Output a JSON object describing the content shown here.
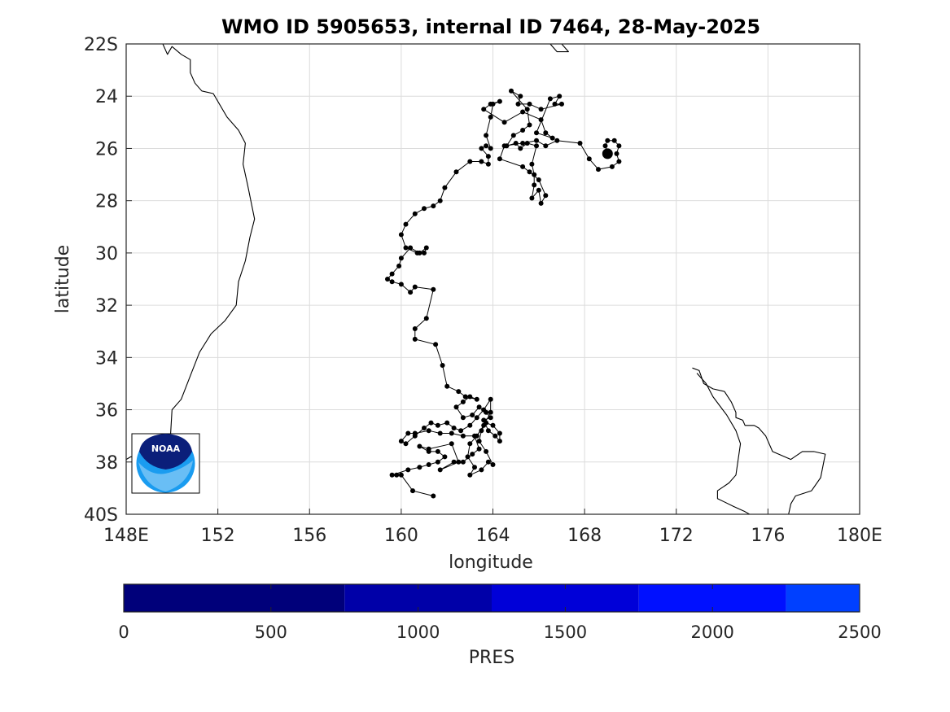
{
  "figure": {
    "title": "WMO ID 5905653, internal ID 7464, 28-May-2025",
    "logo_text": "NOAA"
  },
  "map": {
    "xlabel": "longitude",
    "ylabel": "latitude",
    "lon_range": [
      148,
      180
    ],
    "lat_range": [
      -40,
      -22
    ],
    "x_ticks": [
      148,
      152,
      156,
      160,
      164,
      168,
      172,
      176,
      180
    ],
    "x_tick_labels": [
      "148E",
      "152",
      "156",
      "160",
      "164",
      "168",
      "172",
      "176",
      "180E"
    ],
    "y_ticks": [
      -22,
      -24,
      -26,
      -28,
      -30,
      -32,
      -34,
      -36,
      -38,
      -40
    ],
    "y_tick_labels": [
      "22S",
      "24",
      "26",
      "28",
      "30",
      "32",
      "34",
      "36",
      "38",
      "40S"
    ],
    "grid": true,
    "last_position": [
      169.0,
      -26.2
    ],
    "track": [
      [
        161.4,
        -39.3
      ],
      [
        160.5,
        -39.1
      ],
      [
        160.0,
        -38.5
      ],
      [
        159.8,
        -38.5
      ],
      [
        159.6,
        -38.5
      ],
      [
        160.3,
        -38.3
      ],
      [
        160.8,
        -38.2
      ],
      [
        161.2,
        -38.1
      ],
      [
        161.6,
        -38.0
      ],
      [
        161.9,
        -37.8
      ],
      [
        161.6,
        -37.6
      ],
      [
        161.2,
        -37.6
      ],
      [
        160.8,
        -37.4
      ],
      [
        161.2,
        -37.5
      ],
      [
        162.2,
        -37.3
      ],
      [
        162.5,
        -38.0
      ],
      [
        161.7,
        -38.3
      ],
      [
        162.3,
        -38.0
      ],
      [
        162.7,
        -38.0
      ],
      [
        163.1,
        -37.7
      ],
      [
        163.4,
        -37.5
      ],
      [
        163.2,
        -37.0
      ],
      [
        162.7,
        -37.0
      ],
      [
        162.2,
        -36.9
      ],
      [
        161.7,
        -36.9
      ],
      [
        161.2,
        -36.8
      ],
      [
        160.6,
        -36.9
      ],
      [
        160.3,
        -36.9
      ],
      [
        160.0,
        -37.2
      ],
      [
        160.2,
        -37.3
      ],
      [
        160.6,
        -37.0
      ],
      [
        161.0,
        -36.7
      ],
      [
        161.3,
        -36.5
      ],
      [
        161.6,
        -36.6
      ],
      [
        162.0,
        -36.5
      ],
      [
        162.3,
        -36.7
      ],
      [
        162.6,
        -36.8
      ],
      [
        163.0,
        -36.6
      ],
      [
        163.3,
        -36.3
      ],
      [
        163.6,
        -36.0
      ],
      [
        163.9,
        -35.6
      ],
      [
        163.9,
        -36.1
      ],
      [
        163.6,
        -36.6
      ],
      [
        163.3,
        -37.0
      ],
      [
        163.0,
        -37.3
      ],
      [
        162.9,
        -37.8
      ],
      [
        163.2,
        -38.2
      ],
      [
        163.0,
        -38.5
      ],
      [
        163.5,
        -38.3
      ],
      [
        163.8,
        -38.0
      ],
      [
        164.0,
        -38.1
      ],
      [
        163.7,
        -37.6
      ],
      [
        163.4,
        -37.2
      ],
      [
        163.5,
        -36.8
      ],
      [
        163.7,
        -36.5
      ],
      [
        164.0,
        -36.6
      ],
      [
        164.3,
        -36.9
      ],
      [
        164.3,
        -37.2
      ],
      [
        164.1,
        -37.0
      ],
      [
        163.8,
        -36.8
      ],
      [
        163.6,
        -36.4
      ],
      [
        163.9,
        -36.3
      ],
      [
        163.7,
        -36.1
      ],
      [
        163.4,
        -35.9
      ],
      [
        163.1,
        -36.2
      ],
      [
        162.7,
        -36.3
      ],
      [
        162.4,
        -35.9
      ],
      [
        162.7,
        -35.7
      ],
      [
        163.0,
        -35.5
      ],
      [
        163.3,
        -35.6
      ],
      [
        162.8,
        -35.5
      ],
      [
        162.5,
        -35.3
      ],
      [
        162.0,
        -35.1
      ],
      [
        161.8,
        -34.3
      ],
      [
        161.5,
        -33.5
      ],
      [
        160.6,
        -33.3
      ],
      [
        160.6,
        -32.9
      ],
      [
        161.1,
        -32.5
      ],
      [
        161.4,
        -31.4
      ],
      [
        160.6,
        -31.3
      ],
      [
        160.4,
        -31.5
      ],
      [
        160.0,
        -31.2
      ],
      [
        159.6,
        -31.1
      ],
      [
        159.4,
        -31.0
      ],
      [
        159.6,
        -30.8
      ],
      [
        159.9,
        -30.5
      ],
      [
        160.0,
        -30.2
      ],
      [
        160.4,
        -29.8
      ],
      [
        160.8,
        -30.0
      ],
      [
        161.1,
        -29.8
      ],
      [
        161.0,
        -30.0
      ],
      [
        160.7,
        -30.0
      ],
      [
        160.2,
        -29.8
      ],
      [
        160.0,
        -29.3
      ],
      [
        160.2,
        -28.9
      ],
      [
        160.6,
        -28.5
      ],
      [
        161.0,
        -28.3
      ],
      [
        161.4,
        -28.2
      ],
      [
        161.7,
        -28.0
      ],
      [
        161.9,
        -27.5
      ],
      [
        162.4,
        -26.9
      ],
      [
        163.0,
        -26.5
      ],
      [
        163.5,
        -26.5
      ],
      [
        163.8,
        -26.6
      ],
      [
        163.8,
        -26.3
      ],
      [
        163.5,
        -26.0
      ],
      [
        163.7,
        -25.9
      ],
      [
        163.9,
        -26.0
      ],
      [
        163.7,
        -25.5
      ],
      [
        163.9,
        -24.8
      ],
      [
        164.0,
        -24.3
      ],
      [
        164.3,
        -24.2
      ],
      [
        163.9,
        -24.3
      ],
      [
        163.6,
        -24.5
      ],
      [
        164.5,
        -25.0
      ],
      [
        165.3,
        -24.6
      ],
      [
        166.1,
        -24.9
      ],
      [
        166.3,
        -25.4
      ],
      [
        166.6,
        -25.6
      ],
      [
        165.9,
        -25.4
      ],
      [
        166.5,
        -24.1
      ],
      [
        166.9,
        -24.0
      ],
      [
        166.7,
        -24.3
      ],
      [
        167.0,
        -24.3
      ],
      [
        166.1,
        -24.5
      ],
      [
        165.6,
        -24.3
      ],
      [
        165.1,
        -24.3
      ],
      [
        165.2,
        -24.0
      ],
      [
        164.8,
        -23.8
      ],
      [
        165.5,
        -24.5
      ],
      [
        165.6,
        -25.1
      ],
      [
        165.3,
        -25.3
      ],
      [
        164.9,
        -25.5
      ],
      [
        164.6,
        -25.9
      ],
      [
        165.0,
        -25.8
      ],
      [
        165.2,
        -26.0
      ],
      [
        165.5,
        -25.8
      ],
      [
        165.9,
        -25.9
      ],
      [
        165.7,
        -26.6
      ],
      [
        165.8,
        -27.0
      ],
      [
        165.8,
        -27.4
      ],
      [
        165.7,
        -27.9
      ],
      [
        166.0,
        -27.6
      ],
      [
        166.1,
        -28.1
      ],
      [
        166.3,
        -27.8
      ],
      [
        166.0,
        -27.2
      ],
      [
        165.6,
        -26.9
      ],
      [
        165.3,
        -26.7
      ],
      [
        164.3,
        -26.4
      ],
      [
        164.5,
        -25.9
      ],
      [
        165.3,
        -25.8
      ],
      [
        165.9,
        -25.7
      ],
      [
        166.3,
        -25.9
      ],
      [
        166.8,
        -25.7
      ],
      [
        167.8,
        -25.8
      ],
      [
        168.2,
        -26.4
      ],
      [
        168.6,
        -26.8
      ],
      [
        169.2,
        -26.7
      ],
      [
        169.5,
        -26.5
      ],
      [
        169.4,
        -26.2
      ],
      [
        169.5,
        -25.9
      ],
      [
        169.3,
        -25.7
      ],
      [
        169.0,
        -25.7
      ],
      [
        168.9,
        -25.9
      ],
      [
        169.0,
        -26.2
      ]
    ],
    "coastlines": {
      "australia": [
        [
          149.6,
          -22.0
        ],
        [
          149.8,
          -22.4
        ],
        [
          150.0,
          -22.1
        ],
        [
          150.4,
          -22.4
        ],
        [
          150.8,
          -22.6
        ],
        [
          150.8,
          -23.1
        ],
        [
          151.0,
          -23.5
        ],
        [
          151.3,
          -23.8
        ],
        [
          151.8,
          -23.9
        ],
        [
          152.4,
          -24.8
        ],
        [
          152.9,
          -25.3
        ],
        [
          153.2,
          -25.8
        ],
        [
          153.1,
          -26.6
        ],
        [
          153.3,
          -27.4
        ],
        [
          153.6,
          -28.7
        ],
        [
          153.4,
          -29.4
        ],
        [
          153.2,
          -30.3
        ],
        [
          152.9,
          -31.1
        ],
        [
          152.8,
          -32.0
        ],
        [
          152.3,
          -32.6
        ],
        [
          151.7,
          -33.1
        ],
        [
          151.2,
          -33.8
        ],
        [
          150.8,
          -34.7
        ],
        [
          150.4,
          -35.6
        ],
        [
          150.0,
          -36.0
        ],
        [
          149.9,
          -37.5
        ],
        [
          149.5,
          -37.8
        ],
        [
          148.2,
          -37.8
        ],
        [
          148.0,
          -37.9
        ]
      ],
      "nz_north_island_top": [
        [
          172.7,
          -34.4
        ],
        [
          173.0,
          -34.5
        ],
        [
          173.2,
          -35.0
        ],
        [
          173.6,
          -35.2
        ],
        [
          174.1,
          -35.3
        ],
        [
          174.4,
          -35.7
        ],
        [
          174.6,
          -36.1
        ],
        [
          174.6,
          -36.3
        ],
        [
          174.9,
          -36.4
        ],
        [
          175.0,
          -36.6
        ],
        [
          175.4,
          -36.6
        ],
        [
          175.6,
          -36.7
        ],
        [
          175.9,
          -37.0
        ],
        [
          176.2,
          -37.6
        ],
        [
          177.0,
          -37.9
        ],
        [
          177.5,
          -37.6
        ],
        [
          178.0,
          -37.6
        ],
        [
          178.5,
          -37.7
        ],
        [
          178.3,
          -38.6
        ],
        [
          177.9,
          -39.1
        ],
        [
          177.2,
          -39.3
        ],
        [
          177.0,
          -39.6
        ],
        [
          176.9,
          -40.0
        ]
      ],
      "nz_north_island_west": [
        [
          172.9,
          -34.6
        ],
        [
          173.3,
          -35.0
        ],
        [
          173.6,
          -35.5
        ],
        [
          174.2,
          -36.2
        ],
        [
          174.6,
          -36.8
        ],
        [
          174.8,
          -37.3
        ],
        [
          174.7,
          -37.9
        ],
        [
          174.6,
          -38.5
        ],
        [
          174.3,
          -38.8
        ],
        [
          173.8,
          -39.1
        ],
        [
          173.8,
          -39.4
        ],
        [
          174.5,
          -39.7
        ],
        [
          175.0,
          -39.9
        ],
        [
          175.2,
          -40.0
        ]
      ],
      "northern_fragment": [
        [
          166.5,
          -22.0
        ],
        [
          166.8,
          -22.3
        ],
        [
          167.3,
          -22.3
        ],
        [
          167.0,
          -22.0
        ]
      ]
    }
  },
  "colorbar": {
    "label": "PRES",
    "range": [
      0,
      2500
    ],
    "ticks": [
      0,
      500,
      1000,
      1500,
      2000,
      2500
    ],
    "tick_labels": [
      "0",
      "500",
      "1000",
      "1500",
      "2000",
      "2500"
    ],
    "segments": [
      {
        "from": 0,
        "to": 750,
        "color": "#00007a"
      },
      {
        "from": 750,
        "to": 1250,
        "color": "#0000a8"
      },
      {
        "from": 1250,
        "to": 1750,
        "color": "#0000d8"
      },
      {
        "from": 1750,
        "to": 2250,
        "color": "#0010ff"
      },
      {
        "from": 2250,
        "to": 2500,
        "color": "#0040ff"
      }
    ]
  }
}
